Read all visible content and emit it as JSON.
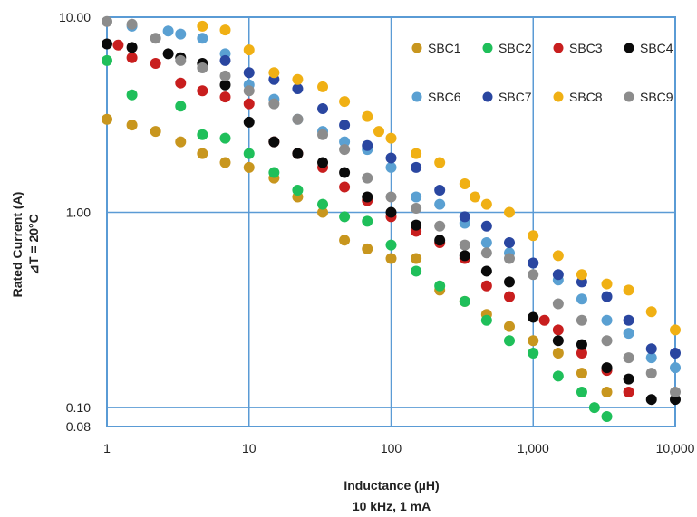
{
  "chart_data": {
    "type": "scatter",
    "title": "",
    "xlabel": "Inductance (µH)",
    "xlabel_sub": "10 kHz, 1 mA",
    "ylabel": "Rated Current (A)",
    "ylabel_sub": "⊿T = 20°C",
    "x_scale": "log",
    "y_scale": "log",
    "xlim": [
      1,
      10000
    ],
    "ylim": [
      0.08,
      10
    ],
    "x_ticks": [
      {
        "value": 1,
        "label": "1"
      },
      {
        "value": 10,
        "label": "10"
      },
      {
        "value": 100,
        "label": "100"
      },
      {
        "value": 1000,
        "label": "1,000"
      },
      {
        "value": 10000,
        "label": "10,000"
      }
    ],
    "y_ticks": [
      {
        "value": 10,
        "label": "10.00"
      },
      {
        "value": 1,
        "label": "1.00"
      },
      {
        "value": 0.1,
        "label": "0.10"
      },
      {
        "value": 0.08,
        "label": "0.08"
      }
    ],
    "grid": true,
    "legend_position": "top-right",
    "series": [
      {
        "name": "SBC1",
        "color": "#c8961e",
        "x": [
          1,
          1.5,
          2.2,
          3.3,
          4.7,
          6.8,
          10,
          15,
          22,
          33,
          47,
          68,
          100,
          150,
          220,
          330,
          470,
          680,
          1000,
          1500,
          2200,
          3300
        ],
        "y": [
          3.0,
          2.8,
          2.6,
          2.3,
          2.0,
          1.8,
          1.7,
          1.5,
          1.2,
          1.0,
          0.72,
          0.65,
          0.58,
          0.58,
          0.4,
          0.35,
          0.3,
          0.26,
          0.22,
          0.19,
          0.15,
          0.12
        ]
      },
      {
        "name": "SBC2",
        "color": "#1fbf5a",
        "x": [
          1,
          1.5,
          3.3,
          4.7,
          6.8,
          10,
          15,
          22,
          33,
          47,
          68,
          100,
          150,
          220,
          330,
          470,
          680,
          1000,
          1500,
          2200,
          2700,
          3300
        ],
        "y": [
          6.0,
          4.0,
          3.5,
          2.5,
          2.4,
          2.0,
          1.6,
          1.3,
          1.1,
          0.95,
          0.9,
          0.68,
          0.5,
          0.42,
          0.35,
          0.28,
          0.22,
          0.19,
          0.145,
          0.12,
          0.1,
          0.09
        ]
      },
      {
        "name": "SBC3",
        "color": "#c81e1e",
        "x": [
          1.2,
          1.5,
          2.2,
          3.3,
          4.7,
          6.8,
          10,
          15,
          22,
          33,
          47,
          68,
          100,
          150,
          220,
          330,
          470,
          680,
          1200,
          1500,
          2200,
          3300,
          4700
        ],
        "y": [
          7.2,
          6.2,
          5.8,
          4.6,
          4.2,
          3.9,
          3.6,
          2.3,
          2.0,
          1.7,
          1.35,
          1.15,
          0.95,
          0.8,
          0.7,
          0.58,
          0.42,
          0.37,
          0.28,
          0.25,
          0.19,
          0.155,
          0.12
        ]
      },
      {
        "name": "SBC4",
        "color": "#0a0a0a",
        "x": [
          1,
          1.5,
          2.7,
          3.3,
          4.7,
          6.8,
          10,
          15,
          22,
          33,
          47,
          68,
          100,
          150,
          220,
          330,
          470,
          680,
          1000,
          1500,
          2200,
          3300,
          4700,
          6800,
          10000
        ],
        "y": [
          7.3,
          7.0,
          6.5,
          6.2,
          5.8,
          4.5,
          2.9,
          2.3,
          2.0,
          1.8,
          1.6,
          1.2,
          1.0,
          0.86,
          0.72,
          0.6,
          0.5,
          0.44,
          0.29,
          0.22,
          0.21,
          0.16,
          0.14,
          0.11,
          0.11
        ]
      },
      {
        "name": "SBC6",
        "color": "#5aa0d2",
        "x": [
          1.5,
          2.7,
          3.3,
          4.7,
          6.8,
          10,
          15,
          22,
          33,
          47,
          68,
          100,
          150,
          220,
          330,
          470,
          680,
          1000,
          1500,
          2200,
          3300,
          4700,
          6800,
          10000
        ],
        "y": [
          9.0,
          8.5,
          8.2,
          7.8,
          6.5,
          4.5,
          3.8,
          3.0,
          2.6,
          2.3,
          2.1,
          1.7,
          1.2,
          1.1,
          0.88,
          0.7,
          0.62,
          0.55,
          0.45,
          0.36,
          0.28,
          0.24,
          0.18,
          0.16
        ]
      },
      {
        "name": "SBC7",
        "color": "#2a46a0",
        "x": [
          6.8,
          10,
          15,
          22,
          33,
          47,
          68,
          100,
          150,
          220,
          330,
          470,
          680,
          1000,
          1500,
          2200,
          3300,
          4700,
          6800,
          10000
        ],
        "y": [
          6.0,
          5.2,
          4.8,
          4.3,
          3.4,
          2.8,
          2.2,
          1.9,
          1.7,
          1.3,
          0.95,
          0.85,
          0.7,
          0.55,
          0.48,
          0.44,
          0.37,
          0.28,
          0.2,
          0.19
        ]
      },
      {
        "name": "SBC8",
        "color": "#f0b014",
        "x": [
          4.7,
          6.8,
          10,
          15,
          22,
          33,
          47,
          68,
          82,
          100,
          150,
          220,
          330,
          390,
          470,
          680,
          1000,
          1500,
          2200,
          3300,
          4700,
          6800,
          10000
        ],
        "y": [
          9.0,
          8.6,
          6.8,
          5.2,
          4.8,
          4.4,
          3.7,
          3.1,
          2.6,
          2.4,
          2.0,
          1.8,
          1.4,
          1.2,
          1.1,
          1.0,
          0.76,
          0.6,
          0.48,
          0.43,
          0.4,
          0.31,
          0.25
        ]
      },
      {
        "name": "SBC9",
        "color": "#8c8c8c",
        "x": [
          1,
          1.5,
          2.2,
          3.3,
          4.7,
          6.8,
          10,
          15,
          22,
          33,
          47,
          68,
          100,
          150,
          220,
          330,
          470,
          680,
          1000,
          1500,
          2200,
          3300,
          4700,
          6800,
          10000
        ],
        "y": [
          9.5,
          9.2,
          7.8,
          6.0,
          5.5,
          5.0,
          4.2,
          3.6,
          3.0,
          2.5,
          2.1,
          1.5,
          1.2,
          1.05,
          0.85,
          0.68,
          0.62,
          0.58,
          0.48,
          0.34,
          0.28,
          0.22,
          0.18,
          0.15,
          0.12
        ]
      }
    ]
  }
}
